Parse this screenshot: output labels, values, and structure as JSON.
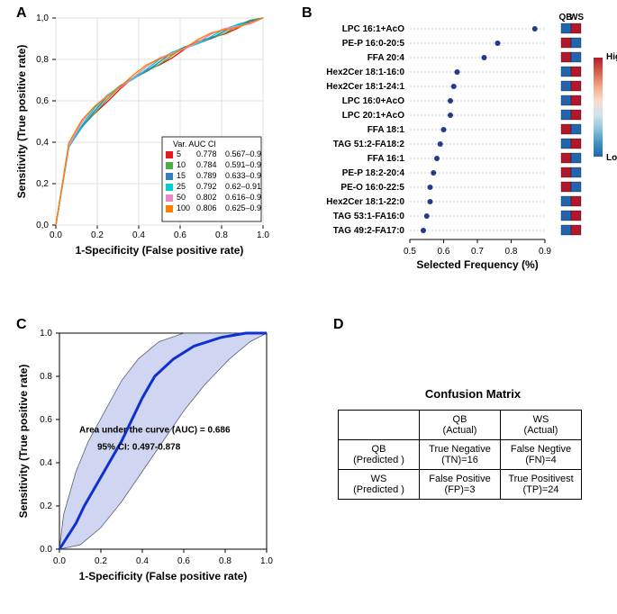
{
  "panel_labels": {
    "A": "A",
    "B": "B",
    "C": "C",
    "D": "D"
  },
  "A": {
    "type": "line",
    "xlabel": "1-Specificity (False positive rate)",
    "ylabel": "Sensitivity (True positive rate)",
    "xlim": [
      0,
      1
    ],
    "ylim": [
      0,
      1
    ],
    "xticks": [
      0.0,
      0.2,
      0.4,
      0.6,
      0.8,
      1.0
    ],
    "yticks": [
      0.0,
      0.2,
      0.4,
      0.6,
      0.8,
      1.0
    ],
    "grid_color": "#e0e0e0",
    "background_color": "#ffffff",
    "legend_title": "Var.   AUC      CI",
    "series": [
      {
        "var": "5",
        "auc": "0.778",
        "ci": "0.567–0.9",
        "color": "#e41a1c"
      },
      {
        "var": "10",
        "auc": "0.784",
        "ci": "0.591–0.9",
        "color": "#4daf4a"
      },
      {
        "var": "15",
        "auc": "0.789",
        "ci": "0.633–0.9",
        "color": "#377eb8"
      },
      {
        "var": "25",
        "auc": "0.792",
        "ci": "0.62–0.91",
        "color": "#00ced1"
      },
      {
        "var": "50",
        "auc": "0.802",
        "ci": "0.616–0.9",
        "color": "#e78ac3"
      },
      {
        "var": "100",
        "auc": "0.806",
        "ci": "0.625–0.9",
        "color": "#ff7f00"
      }
    ]
  },
  "B": {
    "type": "dot",
    "xlabel": "Selected Frequency (%)",
    "xlim": [
      0.5,
      0.9
    ],
    "xticks": [
      0.5,
      0.6,
      0.7,
      0.8,
      0.9
    ],
    "grid_color": "#cccccc",
    "dot_color": "#1f3b8e",
    "dot_radius": 3,
    "heatmap_header": {
      "col1": "QB",
      "col2": "WS"
    },
    "colorbar": {
      "high": "High",
      "low": "Low",
      "stops": [
        "#b2182b",
        "#d6604d",
        "#f4a582",
        "#fddbc7",
        "#d1e5f0",
        "#92c5de",
        "#4393c3",
        "#2166ac"
      ]
    },
    "items": [
      {
        "label": "LPC 16:1+AcO",
        "freq": 0.87,
        "qb": "#2166ac",
        "ws": "#b2182b"
      },
      {
        "label": "PE-P 16:0-20:5",
        "freq": 0.76,
        "qb": "#b2182b",
        "ws": "#2166ac"
      },
      {
        "label": "FFA 20:4",
        "freq": 0.72,
        "qb": "#b2182b",
        "ws": "#2166ac"
      },
      {
        "label": "Hex2Cer 18:1-16:0",
        "freq": 0.64,
        "qb": "#2166ac",
        "ws": "#b2182b"
      },
      {
        "label": "Hex2Cer 18:1-24:1",
        "freq": 0.63,
        "qb": "#2166ac",
        "ws": "#b2182b"
      },
      {
        "label": "LPC 16:0+AcO",
        "freq": 0.62,
        "qb": "#2166ac",
        "ws": "#b2182b"
      },
      {
        "label": "LPC 20:1+AcO",
        "freq": 0.62,
        "qb": "#2166ac",
        "ws": "#b2182b"
      },
      {
        "label": "FFA 18:1",
        "freq": 0.6,
        "qb": "#b2182b",
        "ws": "#2166ac"
      },
      {
        "label": "TAG 51:2-FA18:2",
        "freq": 0.59,
        "qb": "#2166ac",
        "ws": "#b2182b"
      },
      {
        "label": "FFA 16:1",
        "freq": 0.58,
        "qb": "#b2182b",
        "ws": "#2166ac"
      },
      {
        "label": "PE-P 18:2-20:4",
        "freq": 0.57,
        "qb": "#b2182b",
        "ws": "#2166ac"
      },
      {
        "label": "PE-O 16:0-22:5",
        "freq": 0.56,
        "qb": "#b2182b",
        "ws": "#2166ac"
      },
      {
        "label": "Hex2Cer 18:1-22:0",
        "freq": 0.56,
        "qb": "#2166ac",
        "ws": "#b2182b"
      },
      {
        "label": "TAG 53:1-FA16:0",
        "freq": 0.55,
        "qb": "#2166ac",
        "ws": "#b2182b"
      },
      {
        "label": "TAG 49:2-FA17:0",
        "freq": 0.54,
        "qb": "#2166ac",
        "ws": "#b2182b"
      }
    ]
  },
  "C": {
    "type": "line",
    "xlabel": "1-Specificity (False positive rate)",
    "ylabel": "Sensitivity (True positive rate)",
    "xlim": [
      0,
      1
    ],
    "ylim": [
      0,
      1
    ],
    "xticks": [
      0.0,
      0.2,
      0.4,
      0.6,
      0.8,
      1.0
    ],
    "yticks": [
      0.0,
      0.2,
      0.4,
      0.6,
      0.8,
      1.0
    ],
    "line_color": "#1030d0",
    "band_color": "#c8d0f0",
    "band_border": "#404060",
    "line_width": 3,
    "annot1": "Area under the curve (AUC) = 0.686",
    "annot2": "95% CI: 0.497-0.878",
    "annot_fontsize": 11,
    "curve": [
      [
        0.0,
        0.0
      ],
      [
        0.04,
        0.06
      ],
      [
        0.08,
        0.12
      ],
      [
        0.12,
        0.2
      ],
      [
        0.18,
        0.3
      ],
      [
        0.24,
        0.4
      ],
      [
        0.3,
        0.5
      ],
      [
        0.36,
        0.62
      ],
      [
        0.4,
        0.7
      ],
      [
        0.46,
        0.8
      ],
      [
        0.55,
        0.88
      ],
      [
        0.65,
        0.94
      ],
      [
        0.78,
        0.98
      ],
      [
        0.9,
        1.0
      ],
      [
        1.0,
        1.0
      ]
    ],
    "upper": [
      [
        0.0,
        0.0
      ],
      [
        0.02,
        0.16
      ],
      [
        0.08,
        0.36
      ],
      [
        0.14,
        0.5
      ],
      [
        0.22,
        0.64
      ],
      [
        0.3,
        0.78
      ],
      [
        0.38,
        0.88
      ],
      [
        0.48,
        0.96
      ],
      [
        0.6,
        1.0
      ],
      [
        1.0,
        1.0
      ]
    ],
    "lower": [
      [
        0.0,
        0.0
      ],
      [
        0.1,
        0.02
      ],
      [
        0.2,
        0.1
      ],
      [
        0.3,
        0.22
      ],
      [
        0.4,
        0.36
      ],
      [
        0.5,
        0.5
      ],
      [
        0.6,
        0.64
      ],
      [
        0.7,
        0.76
      ],
      [
        0.82,
        0.88
      ],
      [
        0.92,
        0.96
      ],
      [
        1.0,
        1.0
      ]
    ]
  },
  "D": {
    "title": "Confusion Matrix",
    "headers": {
      "qb": "QB",
      "ws": "WS",
      "actual": "(Actual)",
      "predicted": "(Predicted )"
    },
    "cells": {
      "tn": "True Negative",
      "tn_v": "(TN)=16",
      "fn": "False Negtive",
      "fn_v": "(FN)=4",
      "fp": "False Positive",
      "fp_v": "(FP)=3",
      "tp": "True Positivest",
      "tp_v": "(TP)=24"
    }
  }
}
